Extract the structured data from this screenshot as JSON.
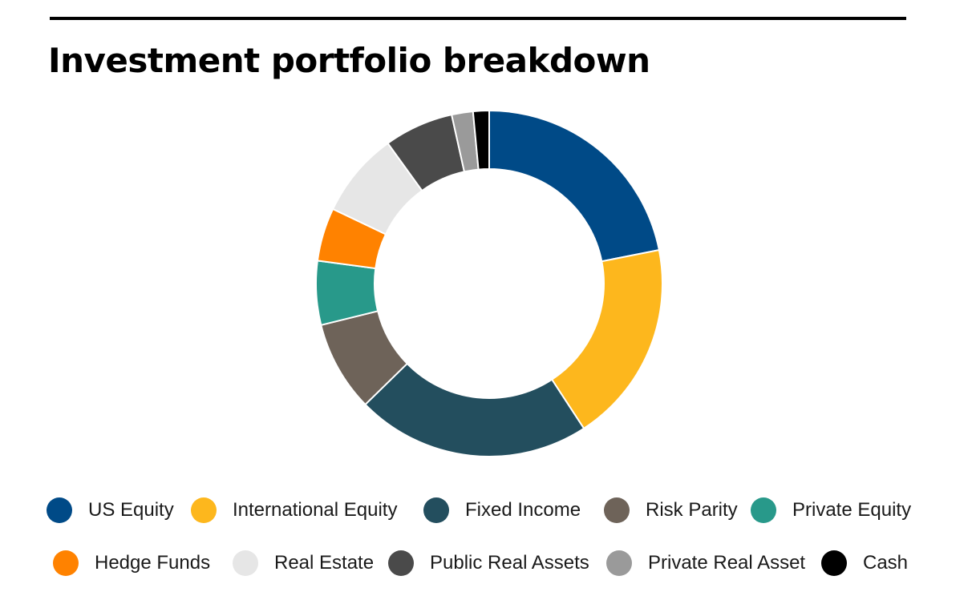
{
  "chart_data": {
    "type": "pie",
    "donut": true,
    "title": "Investment portfolio breakdown",
    "legend_position": "bottom",
    "categories": [
      "US Equity",
      "International Equity",
      "Fixed Income",
      "Risk Parity",
      "Private Equity",
      "Hedge Funds",
      "Real Estate",
      "Public Real Assets",
      "Private Real Asset",
      "Cash"
    ],
    "values": [
      22,
      19,
      22,
      8.5,
      6,
      5,
      8,
      6.5,
      2,
      1.5
    ],
    "colors": [
      "#004a87",
      "#fdb71d",
      "#234e5e",
      "#6e6359",
      "#28998a",
      "#ff8200",
      "#e6e6e6",
      "#4a4a4a",
      "#9a9a9a",
      "#000000"
    ]
  }
}
